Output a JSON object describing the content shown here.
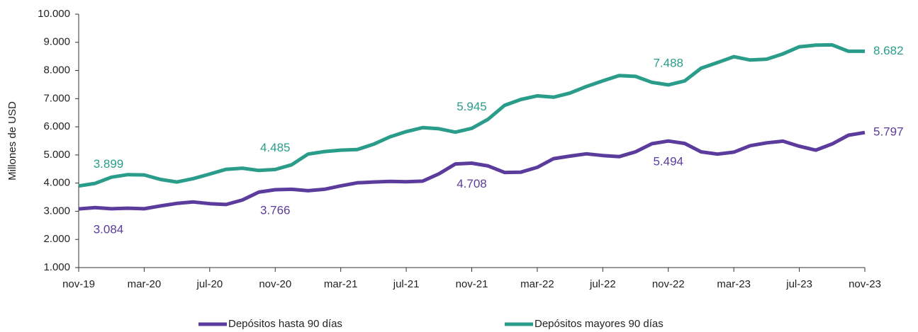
{
  "chart_data": {
    "type": "line",
    "y_label": "Millones de USD",
    "categories": [
      "nov-19",
      null,
      null,
      null,
      "mar-20",
      null,
      null,
      null,
      "jul-20",
      null,
      null,
      null,
      "nov-20",
      null,
      null,
      null,
      "mar-21",
      null,
      null,
      null,
      "jul-21",
      null,
      null,
      null,
      "nov-21",
      null,
      null,
      null,
      "mar-22",
      null,
      null,
      null,
      "jul-22",
      null,
      null,
      null,
      "nov-22",
      null,
      null,
      null,
      "mar-23",
      null,
      null,
      null,
      "jul-23",
      null,
      null,
      null,
      "nov-23"
    ],
    "series": [
      {
        "name": "Depósitos hasta 90 días",
        "color": "#5b3c9c",
        "values": [
          3084,
          3130,
          3090,
          3110,
          3090,
          3190,
          3280,
          3330,
          3270,
          3240,
          3400,
          3680,
          3766,
          3780,
          3730,
          3780,
          3900,
          4010,
          4040,
          4060,
          4050,
          4070,
          4330,
          4680,
          4708,
          4610,
          4380,
          4390,
          4560,
          4870,
          4960,
          5040,
          4980,
          4940,
          5110,
          5400,
          5494,
          5410,
          5110,
          5030,
          5100,
          5330,
          5430,
          5490,
          5310,
          5170,
          5390,
          5700,
          5797
        ],
        "value_labels": [
          "3.084",
          null,
          null,
          null,
          null,
          null,
          null,
          null,
          null,
          null,
          null,
          null,
          "3.766",
          null,
          null,
          null,
          null,
          null,
          null,
          null,
          null,
          null,
          null,
          null,
          "4.708",
          null,
          null,
          null,
          null,
          null,
          null,
          null,
          null,
          null,
          null,
          null,
          "5.494",
          null,
          null,
          null,
          null,
          null,
          null,
          null,
          null,
          null,
          null,
          null,
          "5.797"
        ]
      },
      {
        "name": "Depósitos mayores 90 días",
        "color": "#2a9d8a",
        "values": [
          3899,
          3990,
          4210,
          4300,
          4290,
          4130,
          4040,
          4160,
          4320,
          4490,
          4530,
          4450,
          4485,
          4650,
          5030,
          5120,
          5170,
          5190,
          5380,
          5640,
          5830,
          5970,
          5930,
          5810,
          5945,
          6270,
          6760,
          6970,
          7100,
          7050,
          7200,
          7430,
          7630,
          7820,
          7790,
          7580,
          7488,
          7630,
          8080,
          8280,
          8490,
          8370,
          8400,
          8590,
          8840,
          8900,
          8910,
          8682,
          8682
        ],
        "value_labels": [
          "3.899",
          null,
          null,
          null,
          null,
          null,
          null,
          null,
          null,
          null,
          null,
          null,
          "4.485",
          null,
          null,
          null,
          null,
          null,
          null,
          null,
          null,
          null,
          null,
          null,
          "5.945",
          null,
          null,
          null,
          null,
          null,
          null,
          null,
          null,
          null,
          null,
          null,
          "7.488",
          null,
          null,
          null,
          null,
          null,
          null,
          null,
          null,
          null,
          null,
          null,
          "8.682"
        ]
      }
    ],
    "ylim": [
      1000,
      10000
    ],
    "yticks": [
      {
        "value": 1000,
        "label": "1.000"
      },
      {
        "value": 2000,
        "label": "2.000"
      },
      {
        "value": 3000,
        "label": "3.000"
      },
      {
        "value": 4000,
        "label": "4.000"
      },
      {
        "value": 5000,
        "label": "5.000"
      },
      {
        "value": 6000,
        "label": "6.000"
      },
      {
        "value": 7000,
        "label": "7.000"
      },
      {
        "value": 8000,
        "label": "8.000"
      },
      {
        "value": 9000,
        "label": "9.000"
      },
      {
        "value": 10000,
        "label": "10.000"
      }
    ],
    "grid": false,
    "legend": "bottom"
  }
}
